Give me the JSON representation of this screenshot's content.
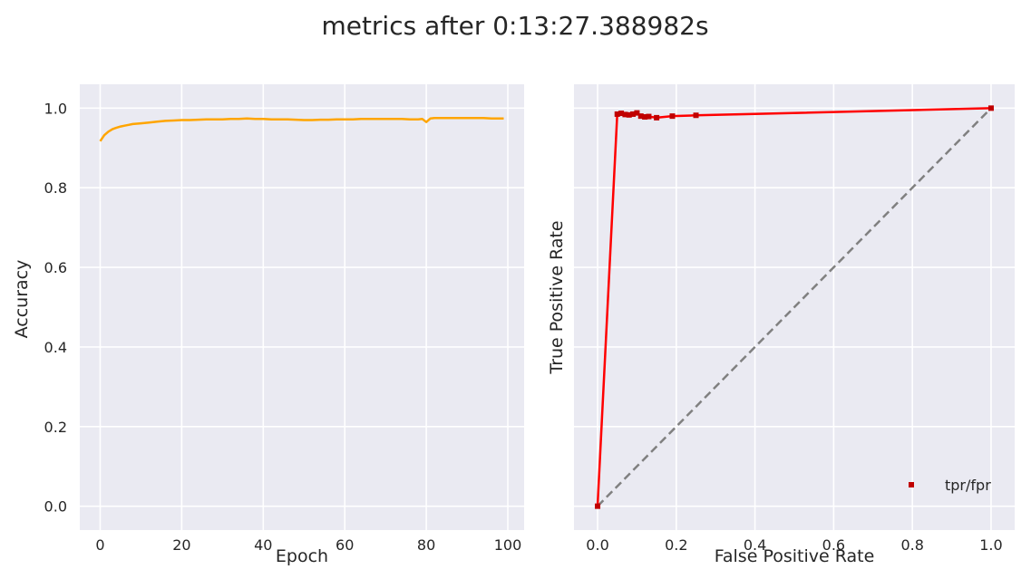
{
  "figure": {
    "suptitle": "metrics after 0:13:27.388982s"
  },
  "chart_data": [
    {
      "type": "line",
      "title": "",
      "xlabel": "Epoch",
      "ylabel": "Accuracy",
      "xlim": [
        -5,
        104
      ],
      "ylim": [
        -0.06,
        1.06
      ],
      "xticks": [
        0,
        20,
        40,
        60,
        80,
        100
      ],
      "yticks": [
        0.0,
        0.2,
        0.4,
        0.6,
        0.8,
        1.0
      ],
      "xtick_labels": [
        "0",
        "20",
        "40",
        "60",
        "80",
        "100"
      ],
      "ytick_labels": [
        "0.0",
        "0.2",
        "0.4",
        "0.6",
        "0.8",
        "1.0"
      ],
      "grid": true,
      "series": [
        {
          "color": "#ffa500",
          "x": [
            0,
            1,
            2,
            3,
            4,
            5,
            6,
            7,
            8,
            9,
            10,
            12,
            14,
            16,
            18,
            20,
            22,
            24,
            26,
            28,
            30,
            32,
            34,
            36,
            38,
            40,
            42,
            44,
            46,
            48,
            50,
            52,
            54,
            56,
            58,
            60,
            62,
            64,
            66,
            68,
            70,
            72,
            74,
            76,
            78,
            79,
            80,
            81,
            82,
            84,
            86,
            88,
            90,
            92,
            94,
            96,
            98,
            99
          ],
          "y": [
            0.917,
            0.932,
            0.941,
            0.947,
            0.951,
            0.954,
            0.956,
            0.958,
            0.96,
            0.961,
            0.962,
            0.964,
            0.966,
            0.968,
            0.969,
            0.97,
            0.97,
            0.971,
            0.972,
            0.972,
            0.972,
            0.973,
            0.973,
            0.974,
            0.973,
            0.973,
            0.972,
            0.972,
            0.972,
            0.971,
            0.97,
            0.97,
            0.971,
            0.971,
            0.972,
            0.972,
            0.972,
            0.973,
            0.973,
            0.973,
            0.973,
            0.973,
            0.973,
            0.972,
            0.972,
            0.973,
            0.965,
            0.974,
            0.975,
            0.975,
            0.975,
            0.975,
            0.975,
            0.975,
            0.975,
            0.974,
            0.974,
            0.974
          ]
        }
      ]
    },
    {
      "type": "line",
      "title": "",
      "xlabel": "False Positive Rate",
      "ylabel": "True Positive Rate",
      "xlim": [
        -0.06,
        1.06
      ],
      "ylim": [
        -0.06,
        1.06
      ],
      "xticks": [
        0.0,
        0.2,
        0.4,
        0.6,
        0.8,
        1.0
      ],
      "xtick_labels": [
        "0.0",
        "0.2",
        "0.4",
        "0.6",
        "0.8",
        "1.0"
      ],
      "yticks": [
        0.0,
        0.2,
        0.4,
        0.6,
        0.8,
        1.0
      ],
      "ytick_labels": [],
      "grid": true,
      "legend_position": "bottom-right",
      "reference_line": {
        "color": "#808080",
        "style": "dashed",
        "x": [
          0,
          1
        ],
        "y": [
          0,
          1
        ]
      },
      "series": [
        {
          "name": "tpr/fpr",
          "line_color": "#ff0000",
          "marker_color": "#c00000",
          "marker": "square",
          "x": [
            0.0,
            0.05,
            0.06,
            0.07,
            0.08,
            0.09,
            0.1,
            0.11,
            0.12,
            0.13,
            0.15,
            0.19,
            0.25,
            1.0
          ],
          "y": [
            0.0,
            0.985,
            0.987,
            0.984,
            0.983,
            0.985,
            0.988,
            0.98,
            0.978,
            0.979,
            0.976,
            0.98,
            0.982,
            1.0
          ]
        }
      ]
    }
  ]
}
